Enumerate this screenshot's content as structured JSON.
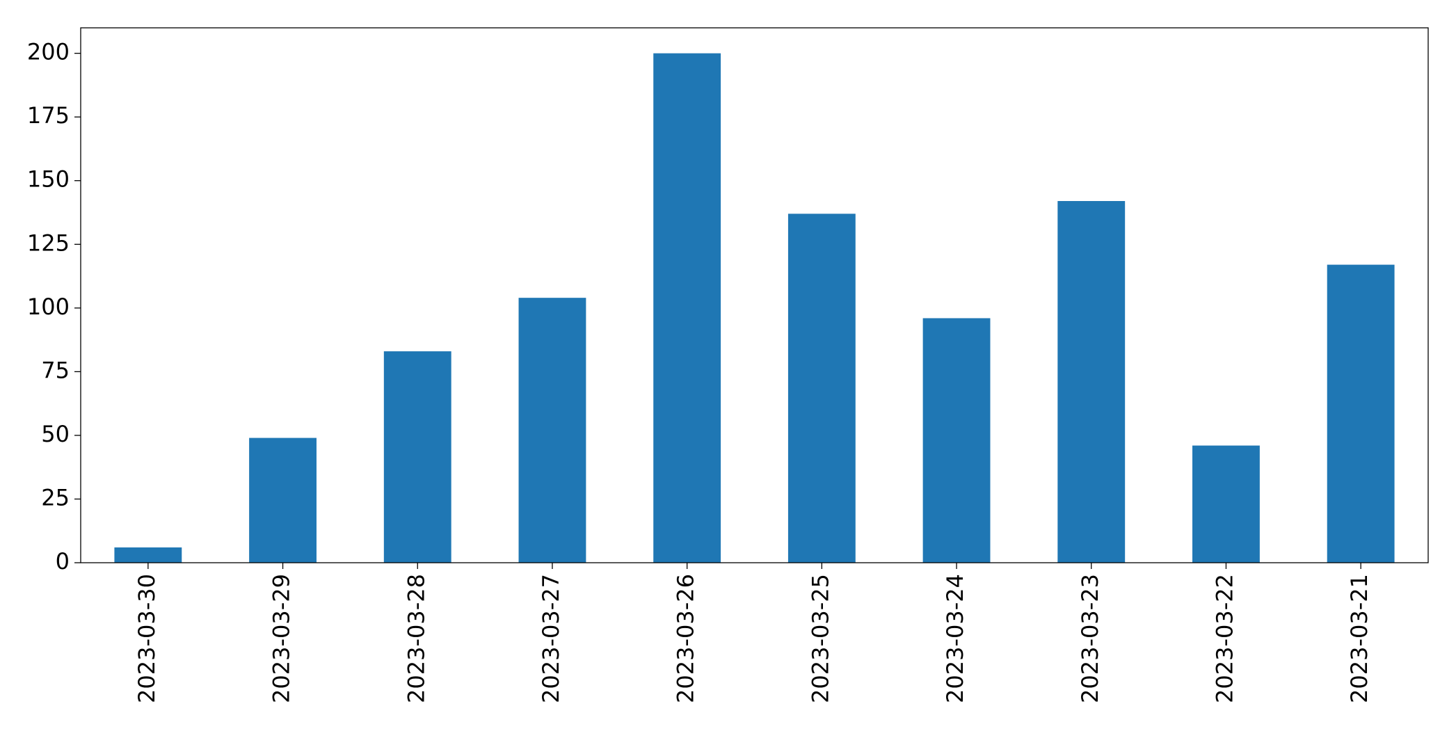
{
  "chart_data": {
    "type": "bar",
    "categories": [
      "2023-03-30",
      "2023-03-29",
      "2023-03-28",
      "2023-03-27",
      "2023-03-26",
      "2023-03-25",
      "2023-03-24",
      "2023-03-23",
      "2023-03-22",
      "2023-03-21"
    ],
    "values": [
      6,
      49,
      83,
      104,
      200,
      137,
      96,
      142,
      46,
      117
    ],
    "color": "#1f77b4",
    "ylim": [
      0,
      210
    ],
    "yticks": [
      0,
      25,
      50,
      75,
      100,
      125,
      150,
      175,
      200
    ],
    "grid": false
  }
}
